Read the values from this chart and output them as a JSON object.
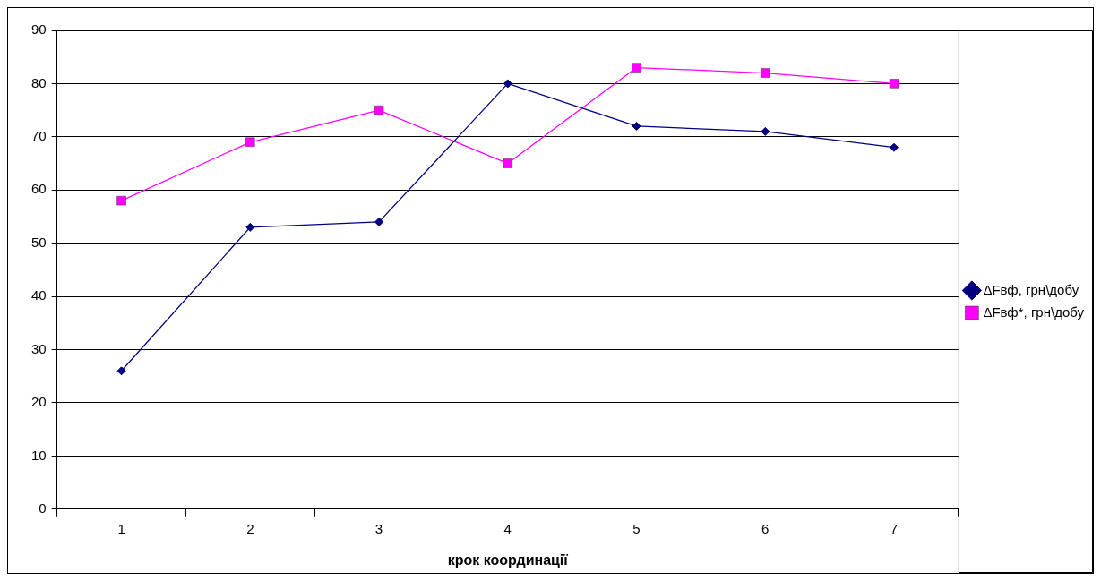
{
  "chart_data": {
    "type": "line",
    "xlabel": "крок координації",
    "categories": [
      "1",
      "2",
      "3",
      "4",
      "5",
      "6",
      "7"
    ],
    "series": [
      {
        "name": "ΔFвф, грн\\добу",
        "color": "#000080",
        "marker": "diamond",
        "values": [
          26,
          53,
          54,
          80,
          72,
          71,
          68
        ]
      },
      {
        "name": "ΔFвф*, грн\\добу",
        "color": "#ff00ff",
        "marker": "square",
        "values": [
          58,
          69,
          75,
          65,
          83,
          82,
          80
        ]
      }
    ],
    "ylim": [
      0,
      90
    ],
    "yticks": [
      0,
      10,
      20,
      30,
      40,
      50,
      60,
      70,
      80,
      90
    ],
    "grid": "y",
    "legend": "right",
    "line_style": "solid"
  }
}
